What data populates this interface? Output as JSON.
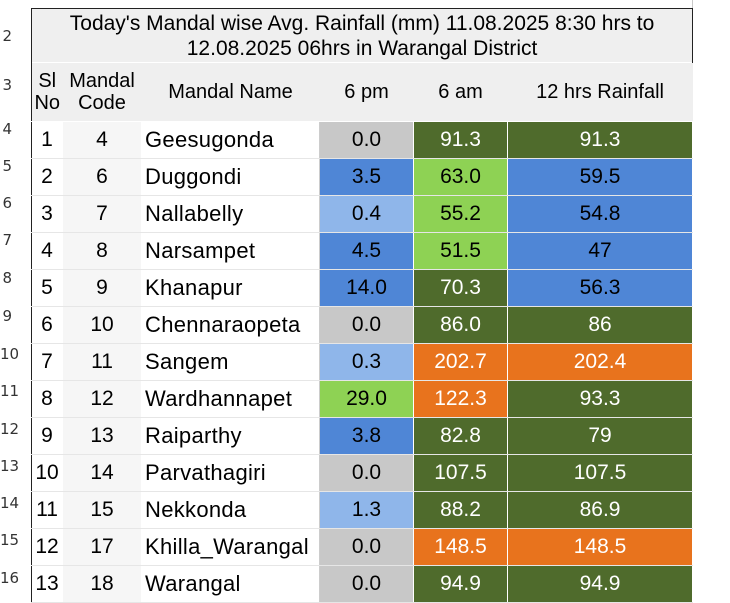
{
  "row_numbers": [
    "2",
    "3",
    "4",
    "5",
    "6",
    "7",
    "8",
    "9",
    "10",
    "11",
    "12",
    "13",
    "14",
    "15",
    "16"
  ],
  "title_line1": "Today's Mandal wise Avg. Rainfall (mm) 11.08.2025 8:30 hrs to",
  "title_line2": "12.08.2025 06hrs in Warangal District",
  "headers": {
    "sl_line1": "Sl",
    "sl_line2": "No",
    "code_line1": "Mandal",
    "code_line2": "Code",
    "name": "Mandal Name",
    "pm6": "6 pm",
    "am6": "6 am",
    "rain12": "12 hrs Rainfall"
  },
  "rows": [
    {
      "sl": "1",
      "code": "4",
      "name": "Geesugonda",
      "pm6": "0.0",
      "am6": "91.3",
      "rain12": "91.3"
    },
    {
      "sl": "2",
      "code": "6",
      "name": "Duggondi",
      "pm6": "3.5",
      "am6": "63.0",
      "rain12": "59.5"
    },
    {
      "sl": "3",
      "code": "7",
      "name": "Nallabelly",
      "pm6": "0.4",
      "am6": "55.2",
      "rain12": "54.8"
    },
    {
      "sl": "4",
      "code": "8",
      "name": "Narsampet",
      "pm6": "4.5",
      "am6": "51.5",
      "rain12": "47"
    },
    {
      "sl": "5",
      "code": "9",
      "name": "Khanapur",
      "pm6": "14.0",
      "am6": "70.3",
      "rain12": "56.3"
    },
    {
      "sl": "6",
      "code": "10",
      "name": "Chennaraopeta",
      "pm6": "0.0",
      "am6": "86.0",
      "rain12": "86"
    },
    {
      "sl": "7",
      "code": "11",
      "name": "Sangem",
      "pm6": "0.3",
      "am6": "202.7",
      "rain12": "202.4"
    },
    {
      "sl": "8",
      "code": "12",
      "name": "Wardhannapet",
      "pm6": "29.0",
      "am6": "122.3",
      "rain12": "93.3"
    },
    {
      "sl": "9",
      "code": "13",
      "name": "Raiparthy",
      "pm6": "3.8",
      "am6": "82.8",
      "rain12": "79"
    },
    {
      "sl": "10",
      "code": "14",
      "name": "Parvathagiri",
      "pm6": "0.0",
      "am6": "107.5",
      "rain12": "107.5"
    },
    {
      "sl": "11",
      "code": "15",
      "name": "Nekkonda",
      "pm6": "1.3",
      "am6": "88.2",
      "rain12": "86.9"
    },
    {
      "sl": "12",
      "code": "17",
      "name": "Khilla_Warangal",
      "pm6": "0.0",
      "am6": "148.5",
      "rain12": "148.5"
    },
    {
      "sl": "13",
      "code": "18",
      "name": "Warangal",
      "pm6": "0.0",
      "am6": "94.9",
      "rain12": "94.9"
    }
  ],
  "colors": {
    "lightgray": "#c8c8c8",
    "lightblue": "#8fb6ea",
    "blue": "#4f86d6",
    "green": "#4f6b2c",
    "lightgreen": "#8ed254",
    "orange": "#e8731d"
  }
}
